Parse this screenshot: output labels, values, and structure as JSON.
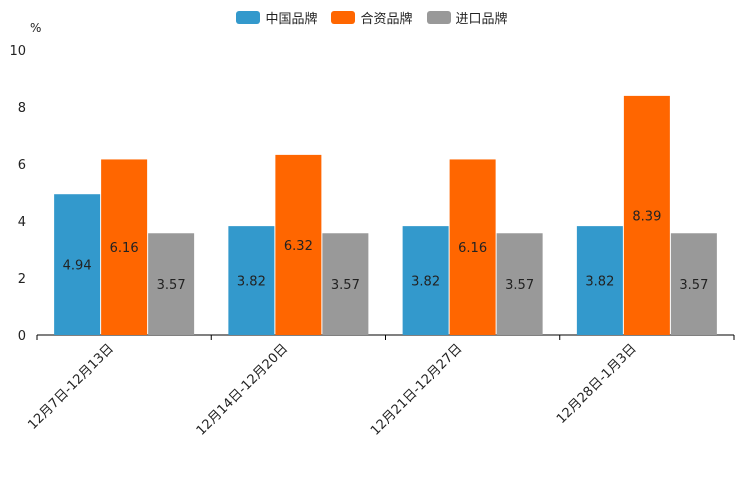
{
  "chart_data": {
    "type": "bar",
    "unit_label": "%",
    "categories": [
      "12月7日-12月13日",
      "12月14日-12月20日",
      "12月21日-12月27日",
      "12月28日-1月3日"
    ],
    "series": [
      {
        "name": "中国品牌",
        "color": "#3399cc",
        "values": [
          4.94,
          3.82,
          3.82,
          3.82
        ]
      },
      {
        "name": "合资品牌",
        "color": "#ff6600",
        "values": [
          6.16,
          6.32,
          6.16,
          8.39
        ]
      },
      {
        "name": "进口品牌",
        "color": "#999999",
        "values": [
          3.57,
          3.57,
          3.57,
          3.57
        ]
      }
    ],
    "ylim": [
      0,
      10
    ],
    "yticks": [
      "0",
      "2",
      "4",
      "6",
      "8",
      "10"
    ],
    "data_labels": [
      [
        "4.94",
        "3.82",
        "3.82",
        "3.82"
      ],
      [
        "6.16",
        "6.32",
        "6.16",
        "8.39"
      ],
      [
        "3.57",
        "3.57",
        "3.57",
        "3.57"
      ]
    ],
    "legend_position": "top-center"
  }
}
